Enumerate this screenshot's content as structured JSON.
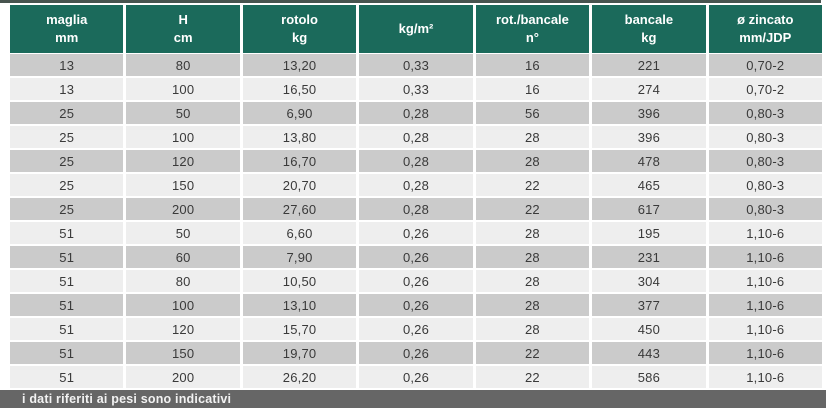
{
  "table": {
    "headers": [
      {
        "label": "maglia\nmm"
      },
      {
        "label": "H\ncm"
      },
      {
        "label": "rotolo\nkg"
      },
      {
        "label": "kg/m²"
      },
      {
        "label": "rot./bancale\nn°"
      },
      {
        "label": "bancale\nkg"
      },
      {
        "label": "ø zincato\nmm/JDP"
      }
    ],
    "rows": [
      [
        "13",
        "80",
        "13,20",
        "0,33",
        "16",
        "221",
        "0,70-2"
      ],
      [
        "13",
        "100",
        "16,50",
        "0,33",
        "16",
        "274",
        "0,70-2"
      ],
      [
        "25",
        "50",
        "6,90",
        "0,28",
        "56",
        "396",
        "0,80-3"
      ],
      [
        "25",
        "100",
        "13,80",
        "0,28",
        "28",
        "396",
        "0,80-3"
      ],
      [
        "25",
        "120",
        "16,70",
        "0,28",
        "28",
        "478",
        "0,80-3"
      ],
      [
        "25",
        "150",
        "20,70",
        "0,28",
        "22",
        "465",
        "0,80-3"
      ],
      [
        "25",
        "200",
        "27,60",
        "0,28",
        "22",
        "617",
        "0,80-3"
      ],
      [
        "51",
        "50",
        "6,60",
        "0,26",
        "28",
        "195",
        "1,10-6"
      ],
      [
        "51",
        "60",
        "7,90",
        "0,26",
        "28",
        "231",
        "1,10-6"
      ],
      [
        "51",
        "80",
        "10,50",
        "0,26",
        "28",
        "304",
        "1,10-6"
      ],
      [
        "51",
        "100",
        "13,10",
        "0,26",
        "28",
        "377",
        "1,10-6"
      ],
      [
        "51",
        "120",
        "15,70",
        "0,26",
        "28",
        "450",
        "1,10-6"
      ],
      [
        "51",
        "150",
        "19,70",
        "0,26",
        "22",
        "443",
        "1,10-6"
      ],
      [
        "51",
        "200",
        "26,20",
        "0,26",
        "22",
        "586",
        "1,10-6"
      ]
    ]
  },
  "footer": {
    "note": "i dati riferiti ai pesi sono indicativi"
  },
  "colors": {
    "header_bg": "#1b6a5b",
    "row_dark": "#cbcbcb",
    "row_light": "#eeeeee",
    "footer_bg": "#666666",
    "top_rule": "#47544f"
  }
}
